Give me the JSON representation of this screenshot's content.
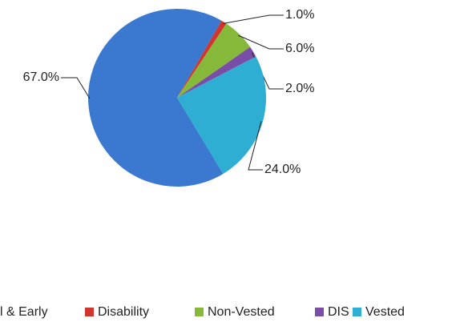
{
  "chart_data": {
    "type": "pie",
    "categories": [
      "l & Early",
      "Disability",
      "Non-Vested",
      "DIS",
      "Vested"
    ],
    "values": [
      67,
      1,
      6,
      2,
      24
    ],
    "value_labels": [
      "67.0%",
      "1.0%",
      "6.0%",
      "2.0%",
      "24.0%"
    ],
    "colors": [
      "#3b78cf",
      "#d0362f",
      "#86b83a",
      "#7a4ea6",
      "#2eaed3"
    ],
    "legend": "bottom"
  }
}
